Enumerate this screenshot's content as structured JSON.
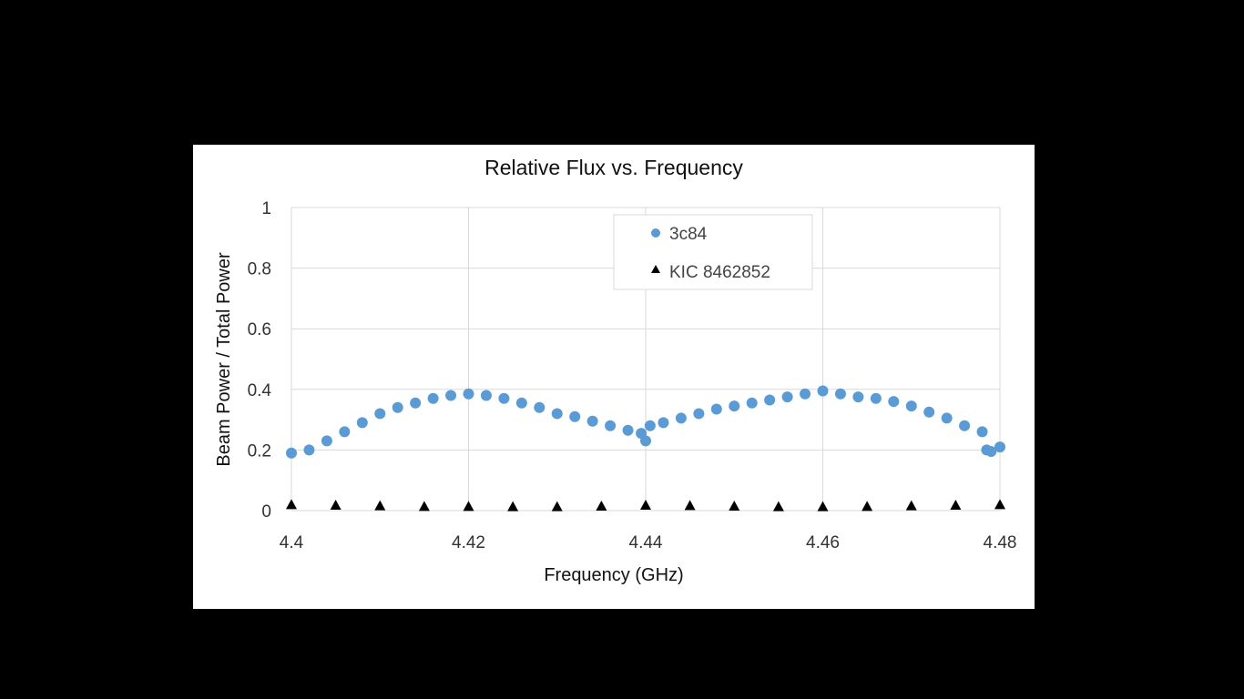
{
  "chart_data": {
    "type": "scatter",
    "title": "Relative Flux vs. Frequency",
    "xlabel": "Frequency (GHz)",
    "ylabel": "Beam Power / Total Power",
    "xlim": [
      4.4,
      4.48
    ],
    "ylim": [
      0,
      1
    ],
    "x_ticks": [
      "4.4",
      "4.42",
      "4.44",
      "4.46",
      "4.48"
    ],
    "y_ticks": [
      "0",
      "0.2",
      "0.4",
      "0.6",
      "0.8",
      "1"
    ],
    "x_tick_values": [
      4.4,
      4.42,
      4.44,
      4.46,
      4.48
    ],
    "y_tick_values": [
      0,
      0.2,
      0.4,
      0.6,
      0.8,
      1
    ],
    "grid": true,
    "legend_position": "top-center",
    "series": [
      {
        "name": "3c84",
        "marker": "circle",
        "color": "#5b9bd5",
        "x": [
          4.4,
          4.402,
          4.404,
          4.406,
          4.408,
          4.41,
          4.412,
          4.414,
          4.416,
          4.418,
          4.42,
          4.422,
          4.424,
          4.426,
          4.428,
          4.43,
          4.432,
          4.434,
          4.436,
          4.438,
          4.4395,
          4.44,
          4.4405,
          4.442,
          4.444,
          4.446,
          4.448,
          4.45,
          4.452,
          4.454,
          4.456,
          4.458,
          4.46,
          4.462,
          4.464,
          4.466,
          4.468,
          4.47,
          4.472,
          4.474,
          4.476,
          4.478,
          4.4785,
          4.479,
          4.48
        ],
        "y": [
          0.19,
          0.2,
          0.23,
          0.26,
          0.29,
          0.32,
          0.34,
          0.355,
          0.37,
          0.38,
          0.385,
          0.38,
          0.37,
          0.355,
          0.34,
          0.32,
          0.31,
          0.295,
          0.28,
          0.265,
          0.255,
          0.23,
          0.28,
          0.29,
          0.305,
          0.32,
          0.335,
          0.345,
          0.355,
          0.365,
          0.375,
          0.385,
          0.395,
          0.385,
          0.375,
          0.37,
          0.36,
          0.345,
          0.325,
          0.305,
          0.28,
          0.26,
          0.2,
          0.195,
          0.21
        ]
      },
      {
        "name": "KIC 8462852",
        "marker": "triangle",
        "color": "#000000",
        "x": [
          4.4,
          4.405,
          4.41,
          4.415,
          4.42,
          4.425,
          4.43,
          4.435,
          4.44,
          4.445,
          4.45,
          4.455,
          4.46,
          4.465,
          4.47,
          4.475,
          4.48
        ],
        "y": [
          0.02,
          0.018,
          0.016,
          0.014,
          0.014,
          0.013,
          0.013,
          0.015,
          0.018,
          0.017,
          0.015,
          0.013,
          0.013,
          0.014,
          0.016,
          0.018,
          0.02
        ]
      }
    ]
  }
}
